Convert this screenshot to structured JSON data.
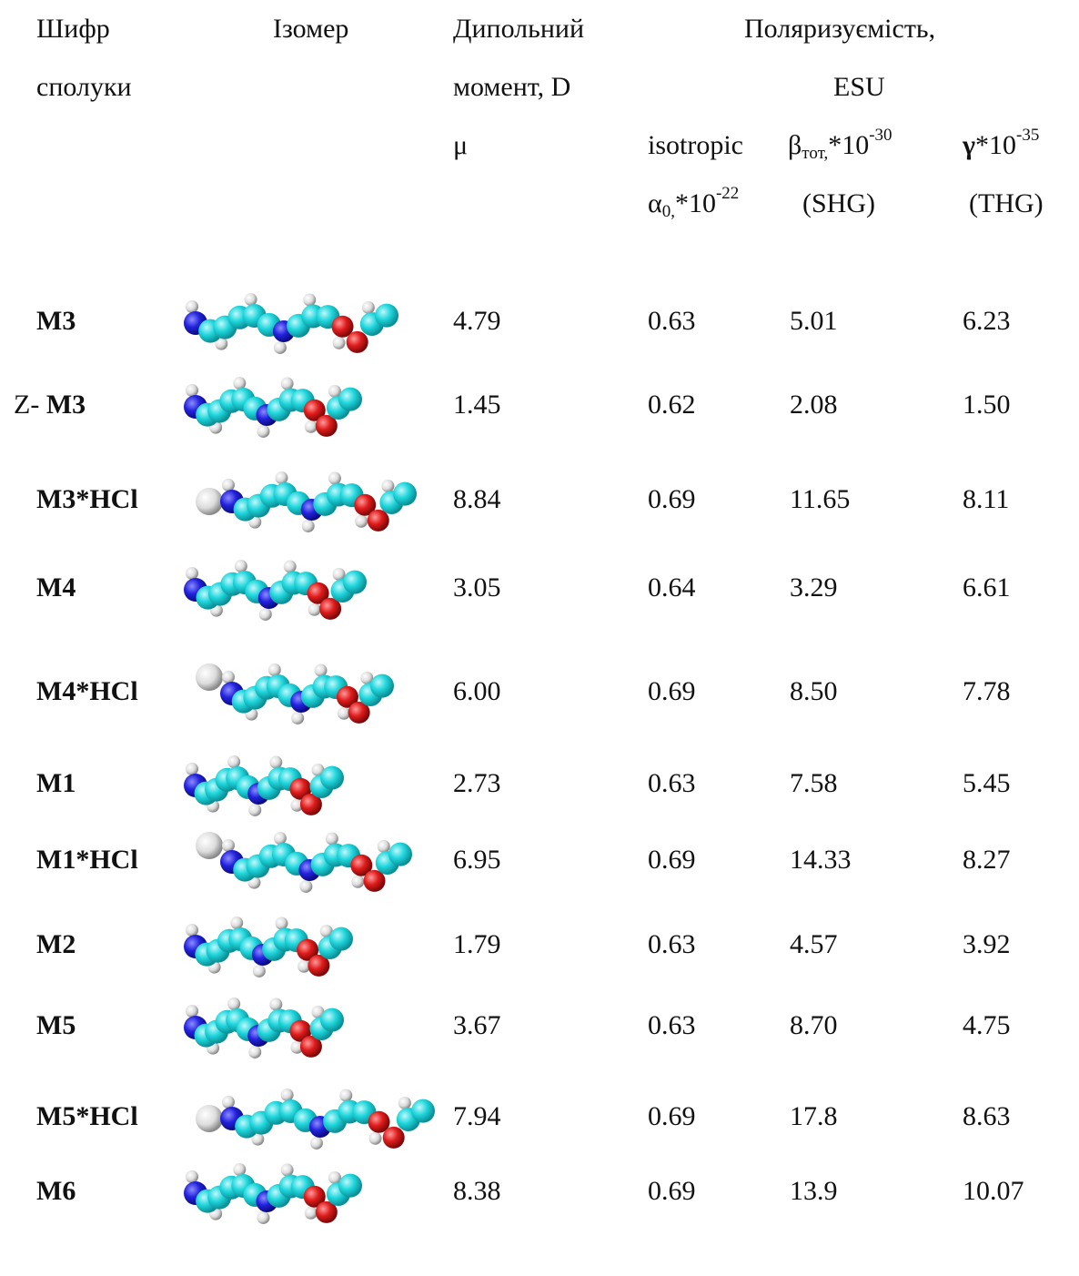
{
  "header": {
    "code": [
      "Шифр",
      "сполуки"
    ],
    "isomer": "Ізомер",
    "dipole": [
      "Дипольний",
      "момент, D",
      "μ"
    ],
    "polar": [
      "Поляризуємість,",
      "ESU"
    ],
    "isotropic": {
      "line1": "isotropic",
      "symbol": "α",
      "sub": "0,",
      "mult": "*10",
      "exp": "-22"
    },
    "beta": {
      "symbol": "β",
      "sub": "тот,",
      "mult": "*10",
      "exp": "-30",
      "mode": "(SHG)"
    },
    "gamma": {
      "symbol": "γ",
      "mult": "*10",
      "exp": "-35",
      "mode": "(THG)"
    }
  },
  "table": {
    "rows": [
      {
        "code": "M3",
        "values": [
          "4.79",
          "0.63",
          "5.01",
          "6.23"
        ]
      },
      {
        "prefix": "Z-",
        "code": "M3",
        "values": [
          "1.45",
          "0.62",
          "2.08",
          "1.50"
        ]
      },
      {
        "code": "M3*HCl",
        "values": [
          "8.84",
          "0.69",
          "11.65",
          "8.11"
        ]
      },
      {
        "code": "M4",
        "values": [
          "3.05",
          "0.64",
          "3.29",
          "6.61"
        ]
      },
      {
        "code": "M4*HCl",
        "values": [
          "6.00",
          "0.69",
          "8.50",
          "7.78"
        ]
      },
      {
        "code": "M1",
        "values": [
          "2.73",
          "0.63",
          "7.58",
          "5.45"
        ]
      },
      {
        "code": "M1*HCl",
        "values": [
          "6.95",
          "0.69",
          "14.33",
          "8.27"
        ]
      },
      {
        "code": "M2",
        "values": [
          "1.79",
          "0.63",
          "4.57",
          "3.92"
        ]
      },
      {
        "code": "M5",
        "values": [
          "3.67",
          "0.63",
          "8.70",
          "4.75"
        ]
      },
      {
        "code": "M5*HCl",
        "values": [
          "7.94",
          "0.69",
          "17.8",
          "8.63"
        ]
      },
      {
        "code": "M6",
        "values": [
          "8.38",
          "0.69",
          "13.9",
          "10.07"
        ]
      }
    ]
  }
}
